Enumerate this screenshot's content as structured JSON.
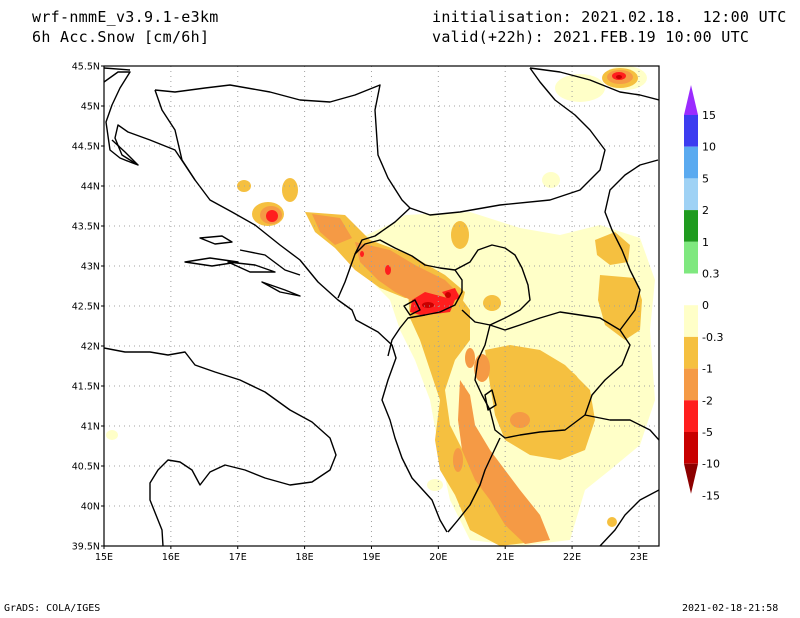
{
  "header": {
    "model": "wrf-nmmE_v3.9.1-e3km",
    "field": "6h Acc.Snow [cm/6h]",
    "init": "initialisation: 2021.02.18.  12:00 UTC",
    "valid": "valid(+22h): 2021.FEB.19 10:00 UTC"
  },
  "footer": {
    "credit": "GrADS: COLA/IGES",
    "timestamp": "2021-02-18-21:58"
  },
  "map": {
    "lat_labels": [
      "45.5N",
      "45N",
      "44.5N",
      "44N",
      "43.5N",
      "43N",
      "42.5N",
      "42N",
      "41.5N",
      "41N",
      "40.5N",
      "40N",
      "39.5N"
    ],
    "lon_labels": [
      "15E",
      "16E",
      "17E",
      "18E",
      "19E",
      "20E",
      "21E",
      "22E",
      "23E"
    ]
  },
  "legend": {
    "labels": [
      "15",
      "10",
      "5",
      "2",
      "1",
      "0.3",
      "0",
      "-0.3",
      "-1",
      "-2",
      "-5",
      "-10",
      "-15"
    ],
    "colors": [
      "#9b2bff",
      "#3c3cf0",
      "#5aaaf0",
      "#9fd2f5",
      "#1f9b1f",
      "#7fe87f",
      "#ffffff",
      "#ffffc8",
      "#f5c040",
      "#f59a45",
      "#ff1e1e",
      "#c80000",
      "#8c0000"
    ]
  },
  "colors": {
    "light": "#ffffc8",
    "yellow": "#f5c040",
    "orange": "#f59a45",
    "red": "#ff1e1e",
    "darkred": "#c80000"
  }
}
